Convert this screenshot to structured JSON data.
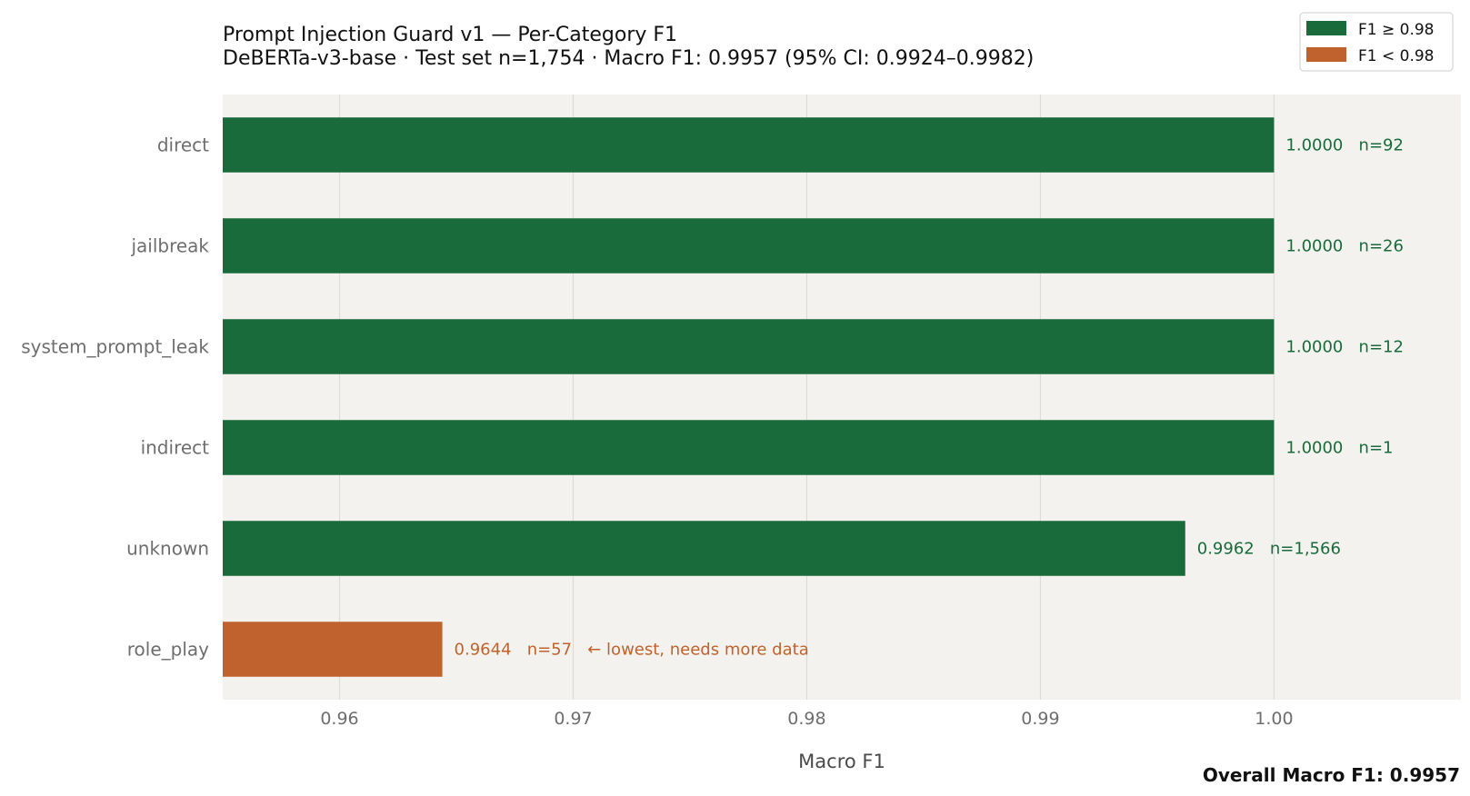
{
  "chart_data": {
    "type": "bar",
    "orientation": "horizontal",
    "title": "Prompt Injection Guard v1  —  Per-Category F1",
    "subtitle": "DeBERTa-v3-base  ·  Test set n=1,754  ·  Macro F1: 0.9957  (95% CI: 0.9924–0.9982)",
    "xlabel": "Macro F1",
    "ylabel": "",
    "xlim": [
      0.955,
      1.008
    ],
    "xticks": [
      0.96,
      0.97,
      0.98,
      0.99,
      1.0
    ],
    "xtick_labels": [
      "0.96",
      "0.97",
      "0.98",
      "0.99",
      "1.00"
    ],
    "grid": "vertical",
    "legend_position": "top-right",
    "categories": [
      "direct",
      "jailbreak",
      "system_prompt_leak",
      "indirect",
      "unknown",
      "role_play"
    ],
    "values": [
      1.0,
      1.0,
      1.0,
      1.0,
      0.9962,
      0.9644
    ],
    "value_labels": [
      "1.0000",
      "1.0000",
      "1.0000",
      "1.0000",
      "0.9962",
      "0.9644"
    ],
    "counts": [
      "n=92",
      "n=26",
      "n=12",
      "n=1",
      "n=1,566",
      "n=57"
    ],
    "annotations": [
      "",
      "",
      "",
      "",
      "",
      "← lowest, needs more data"
    ],
    "threshold": 0.98,
    "legend": [
      {
        "label": "F1 ≥ 0.98",
        "color": "#1a6b3c"
      },
      {
        "label": "F1 < 0.98",
        "color": "#c0622d"
      }
    ],
    "colors": {
      "high": "#1a6b3c",
      "low": "#c0622d",
      "plot_bg": "#f3f2ee",
      "grid": "#dddcd6"
    },
    "footer": "Overall Macro F1: 0.9957"
  }
}
